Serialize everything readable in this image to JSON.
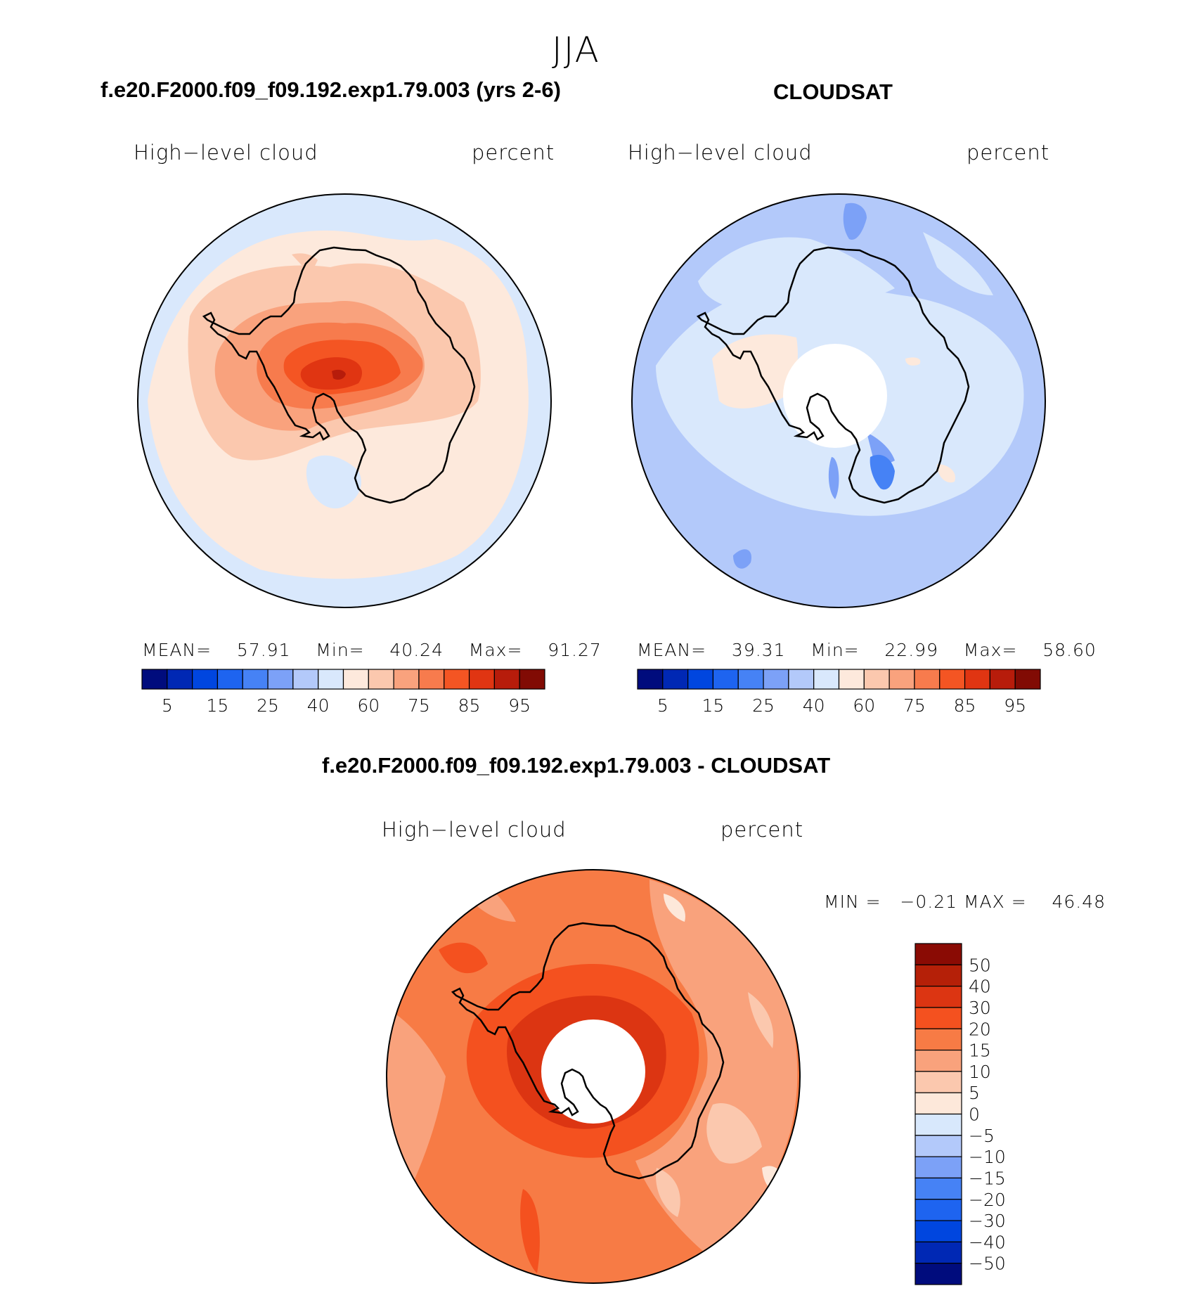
{
  "season": "JJA",
  "panels": [
    {
      "title": "f.e20.F2000.f09_f09.192.exp1.79.003 (yrs 2-6)",
      "variable": "High−level cloud",
      "units": "percent",
      "stats": {
        "mean_label": "MEAN=",
        "mean": "57.91",
        "min_label": "Min=",
        "min": "40.24",
        "max_label": "Max=",
        "max": "91.27"
      }
    },
    {
      "title": "CLOUDSAT",
      "variable": "High−level cloud",
      "units": "percent",
      "stats": {
        "mean_label": "MEAN=",
        "mean": "39.31",
        "min_label": "Min=",
        "min": "22.99",
        "max_label": "Max=",
        "max": "58.60"
      }
    }
  ],
  "abs_colorbar": {
    "colors": [
      "#000c7d",
      "#0028b4",
      "#0046df",
      "#1e64f0",
      "#4682f5",
      "#7ca1f7",
      "#b3c9fa",
      "#d9e8fc",
      "#fde9dc",
      "#fbc8ae",
      "#f9a27d",
      "#f77b4d",
      "#f45523",
      "#e03512",
      "#b71c0b",
      "#810b04"
    ],
    "tick_labels": [
      "5",
      "15",
      "25",
      "40",
      "60",
      "75",
      "85",
      "95"
    ]
  },
  "diff_panel": {
    "title": "f.e20.F2000.f09_f09.192.exp1.79.003 - CLOUDSAT",
    "variable": "High−level cloud",
    "units": "percent",
    "stats": {
      "min_label": "MIN =",
      "min": "−0.21",
      "max_label": "MAX =",
      "max": "46.48"
    },
    "colorbar": {
      "colors_top_to_bottom": [
        "#8a0b04",
        "#b52008",
        "#dc3512",
        "#f4511f",
        "#f77b45",
        "#f9a27c",
        "#fbc8ae",
        "#fde8da",
        "#d8e8fc",
        "#b3c9fa",
        "#7ca1f7",
        "#4682f5",
        "#1e64f0",
        "#0046df",
        "#0028b4",
        "#000c7d"
      ],
      "tick_labels": [
        "50",
        "40",
        "30",
        "20",
        "15",
        "10",
        "5",
        "0",
        "−5",
        "−10",
        "−15",
        "−20",
        "−30",
        "−40",
        "−50"
      ]
    }
  }
}
